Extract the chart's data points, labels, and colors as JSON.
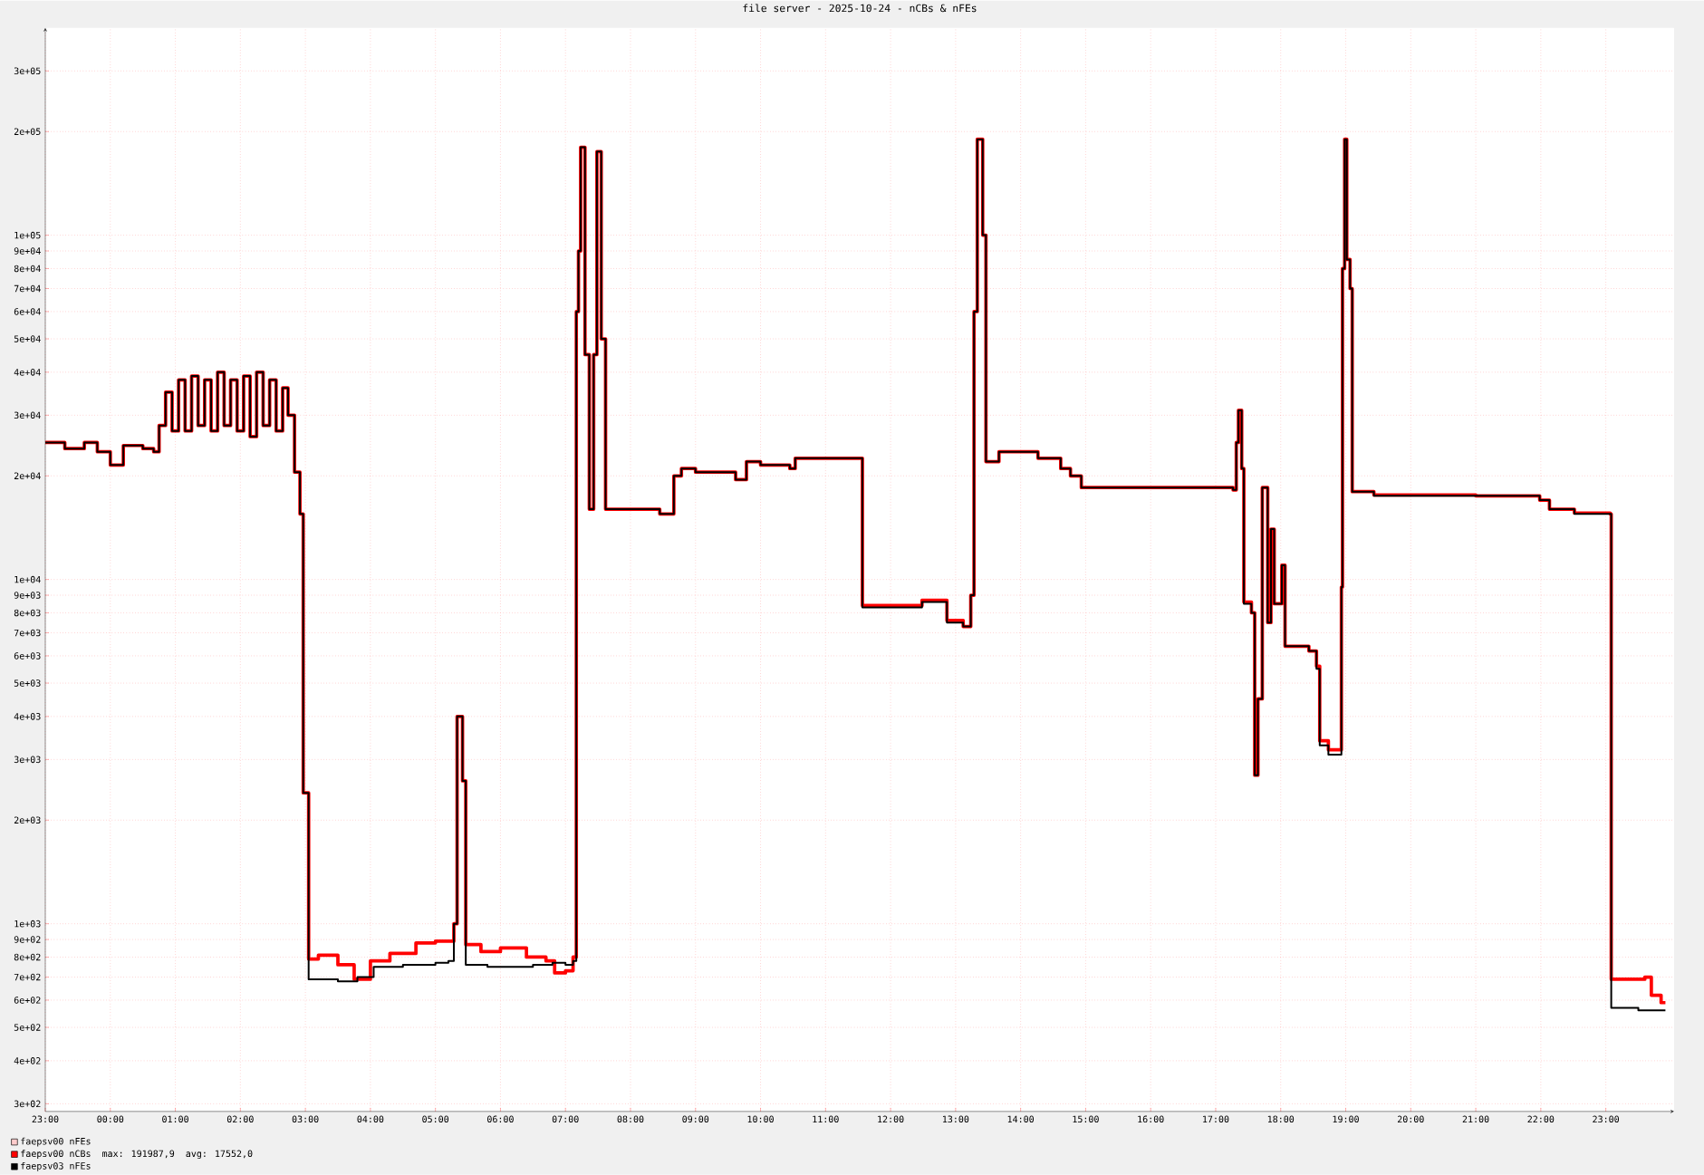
{
  "chart_data": {
    "type": "step",
    "title": "file server - 2025-10-24 - nCBs & nFEs",
    "xlim": [
      "2025-10-23T23:00",
      "2025-10-25T00:03"
    ],
    "ylim": [
      285,
      400000
    ],
    "log": "y",
    "grid": true,
    "legend": "bottom left",
    "xticks": [
      {
        "value": "2025-10-23T23:00",
        "label": "23:00"
      },
      {
        "value": "2025-10-24T00:00",
        "label": "00:00"
      },
      {
        "value": "2025-10-24T01:00",
        "label": "01:00"
      },
      {
        "value": "2025-10-24T02:00",
        "label": "02:00"
      },
      {
        "value": "2025-10-24T03:00",
        "label": "03:00"
      },
      {
        "value": "2025-10-24T04:00",
        "label": "04:00"
      },
      {
        "value": "2025-10-24T05:00",
        "label": "05:00"
      },
      {
        "value": "2025-10-24T06:00",
        "label": "06:00"
      },
      {
        "value": "2025-10-24T07:00",
        "label": "07:00"
      },
      {
        "value": "2025-10-24T08:00",
        "label": "08:00"
      },
      {
        "value": "2025-10-24T09:00",
        "label": "09:00"
      },
      {
        "value": "2025-10-24T10:00",
        "label": "10:00"
      },
      {
        "value": "2025-10-24T11:00",
        "label": "11:00"
      },
      {
        "value": "2025-10-24T12:00",
        "label": "12:00"
      },
      {
        "value": "2025-10-24T13:00",
        "label": "13:00"
      },
      {
        "value": "2025-10-24T14:00",
        "label": "14:00"
      },
      {
        "value": "2025-10-24T15:00",
        "label": "15:00"
      },
      {
        "value": "2025-10-24T16:00",
        "label": "16:00"
      },
      {
        "value": "2025-10-24T17:00",
        "label": "17:00"
      },
      {
        "value": "2025-10-24T18:00",
        "label": "18:00"
      },
      {
        "value": "2025-10-24T19:00",
        "label": "19:00"
      },
      {
        "value": "2025-10-24T20:00",
        "label": "20:00"
      },
      {
        "value": "2025-10-24T21:00",
        "label": "21:00"
      },
      {
        "value": "2025-10-24T22:00",
        "label": "22:00"
      },
      {
        "value": "2025-10-24T23:00",
        "label": "23:00"
      }
    ],
    "yticks": [
      {
        "value": 300,
        "label": "3e+02"
      },
      {
        "value": 400,
        "label": "4e+02"
      },
      {
        "value": 500,
        "label": "5e+02"
      },
      {
        "value": 600,
        "label": "6e+02"
      },
      {
        "value": 700,
        "label": "7e+02"
      },
      {
        "value": 800,
        "label": "8e+02"
      },
      {
        "value": 900,
        "label": "9e+02"
      },
      {
        "value": 1000,
        "label": "1e+03"
      },
      {
        "value": 2000,
        "label": "2e+03"
      },
      {
        "value": 3000,
        "label": "3e+03"
      },
      {
        "value": 4000,
        "label": "4e+03"
      },
      {
        "value": 5000,
        "label": "5e+03"
      },
      {
        "value": 6000,
        "label": "6e+03"
      },
      {
        "value": 7000,
        "label": "7e+03"
      },
      {
        "value": 8000,
        "label": "8e+03"
      },
      {
        "value": 9000,
        "label": "9e+03"
      },
      {
        "value": 10000,
        "label": "1e+04"
      },
      {
        "value": 20000,
        "label": "2e+04"
      },
      {
        "value": 30000,
        "label": "3e+04"
      },
      {
        "value": 40000,
        "label": "4e+04"
      },
      {
        "value": 50000,
        "label": "5e+04"
      },
      {
        "value": 60000,
        "label": "6e+04"
      },
      {
        "value": 70000,
        "label": "7e+04"
      },
      {
        "value": 80000,
        "label": "8e+04"
      },
      {
        "value": 90000,
        "label": "9e+04"
      },
      {
        "value": 100000,
        "label": "1e+05"
      },
      {
        "value": 200000,
        "label": "2e+05"
      },
      {
        "value": 300000,
        "label": "3e+05"
      }
    ],
    "annotations": [
      "max:  191987,9",
      "avg:  17552,0"
    ],
    "series": [
      {
        "name": "faepsv00 nFEs",
        "color": "#ffcccc"
      },
      {
        "name": "faepsv00 nCBs",
        "color": "#ff0000",
        "x": [
          "2025-10-23T23:00",
          "2025-10-23T23:18",
          "2025-10-23T23:36",
          "2025-10-23T23:48",
          "2025-10-24T00:00",
          "2025-10-24T00:12",
          "2025-10-24T00:30",
          "2025-10-24T00:40",
          "2025-10-24T00:45",
          "2025-10-24T00:51",
          "2025-10-24T00:57",
          "2025-10-24T01:03",
          "2025-10-24T01:09",
          "2025-10-24T01:15",
          "2025-10-24T01:21",
          "2025-10-24T01:27",
          "2025-10-24T01:33",
          "2025-10-24T01:39",
          "2025-10-24T01:45",
          "2025-10-24T01:51",
          "2025-10-24T01:57",
          "2025-10-24T02:03",
          "2025-10-24T02:09",
          "2025-10-24T02:15",
          "2025-10-24T02:21",
          "2025-10-24T02:27",
          "2025-10-24T02:33",
          "2025-10-24T02:39",
          "2025-10-24T02:44",
          "2025-10-24T02:50",
          "2025-10-24T02:55",
          "2025-10-24T02:58",
          "2025-10-24T03:03",
          "2025-10-24T03:12",
          "2025-10-24T03:30",
          "2025-10-24T03:45",
          "2025-10-24T04:00",
          "2025-10-24T04:18",
          "2025-10-24T04:42",
          "2025-10-24T05:00",
          "2025-10-24T05:17",
          "2025-10-24T05:20",
          "2025-10-24T05:25",
          "2025-10-24T05:28",
          "2025-10-24T05:42",
          "2025-10-24T06:00",
          "2025-10-24T06:24",
          "2025-10-24T06:42",
          "2025-10-24T06:50",
          "2025-10-24T07:00",
          "2025-10-24T07:07",
          "2025-10-24T07:10",
          "2025-10-24T07:12",
          "2025-10-24T07:14",
          "2025-10-24T07:18",
          "2025-10-24T07:22",
          "2025-10-24T07:26",
          "2025-10-24T07:29",
          "2025-10-24T07:33",
          "2025-10-24T07:37",
          "2025-10-24T08:27",
          "2025-10-24T08:40",
          "2025-10-24T08:47",
          "2025-10-24T09:00",
          "2025-10-24T09:37",
          "2025-10-24T09:47",
          "2025-10-24T10:00",
          "2025-10-24T10:27",
          "2025-10-24T10:32",
          "2025-10-24T11:00",
          "2025-10-24T11:34",
          "2025-10-24T12:00",
          "2025-10-24T12:29",
          "2025-10-24T12:52",
          "2025-10-24T13:07",
          "2025-10-24T13:14",
          "2025-10-24T13:17",
          "2025-10-24T13:20",
          "2025-10-24T13:25",
          "2025-10-24T13:28",
          "2025-10-24T13:40",
          "2025-10-24T14:00",
          "2025-10-24T14:16",
          "2025-10-24T14:37",
          "2025-10-24T14:46",
          "2025-10-24T14:56",
          "2025-10-24T16:00",
          "2025-10-24T16:56",
          "2025-10-24T17:16",
          "2025-10-24T17:19",
          "2025-10-24T17:21",
          "2025-10-24T17:24",
          "2025-10-24T17:26",
          "2025-10-24T17:33",
          "2025-10-24T17:36",
          "2025-10-24T17:39",
          "2025-10-24T17:43",
          "2025-10-24T17:48",
          "2025-10-24T17:51",
          "2025-10-24T17:54",
          "2025-10-24T18:01",
          "2025-10-24T18:04",
          "2025-10-24T18:26",
          "2025-10-24T18:33",
          "2025-10-24T18:36",
          "2025-10-24T18:44",
          "2025-10-24T18:56",
          "2025-10-24T18:57",
          "2025-10-24T18:59",
          "2025-10-24T19:01",
          "2025-10-24T19:04",
          "2025-10-24T19:06",
          "2025-10-24T19:26",
          "2025-10-24T21:00",
          "2025-10-24T21:59",
          "2025-10-24T22:08",
          "2025-10-24T22:31",
          "2025-10-24T23:04",
          "2025-10-24T23:05",
          "2025-10-24T23:36",
          "2025-10-24T23:42",
          "2025-10-24T23:51",
          "2025-10-24T23:55"
        ],
        "values": [
          25000,
          24000,
          25000,
          23500,
          21500,
          24500,
          24000,
          23500,
          28000,
          35000,
          27000,
          38000,
          27000,
          39000,
          28000,
          38000,
          27000,
          40000,
          28000,
          38000,
          27000,
          39000,
          26000,
          40000,
          28000,
          38000,
          27000,
          36000,
          30000,
          20500,
          15500,
          2400,
          790,
          810,
          760,
          690,
          780,
          820,
          880,
          890,
          1000,
          4000,
          2600,
          870,
          830,
          850,
          800,
          780,
          720,
          730,
          800,
          60000,
          90000,
          180000,
          45000,
          16000,
          45000,
          175000,
          50000,
          16000,
          15500,
          20000,
          21000,
          20500,
          19500,
          22000,
          21500,
          21000,
          22500,
          22500,
          8400,
          8400,
          8700,
          7600,
          7300,
          9000,
          60000,
          190000,
          100000,
          22000,
          23500,
          23500,
          22500,
          21000,
          20000,
          18500,
          18500,
          18500,
          18200,
          25000,
          31000,
          21000,
          8600,
          8000,
          2700,
          4500,
          18500,
          7500,
          14000,
          8500,
          11000,
          6400,
          6200,
          5600,
          3400,
          3200,
          9500,
          80000,
          190000,
          85000,
          70000,
          18000,
          17600,
          17500,
          17000,
          16000,
          15600,
          15500,
          690,
          700,
          620,
          590,
          590
        ]
      },
      {
        "name": "faepsv03 nFEs",
        "color": "#000000",
        "x": [
          "2025-10-23T23:00",
          "2025-10-23T23:18",
          "2025-10-23T23:36",
          "2025-10-23T23:48",
          "2025-10-24T00:00",
          "2025-10-24T00:12",
          "2025-10-24T00:30",
          "2025-10-24T00:40",
          "2025-10-24T00:45",
          "2025-10-24T00:51",
          "2025-10-24T00:57",
          "2025-10-24T01:03",
          "2025-10-24T01:09",
          "2025-10-24T01:15",
          "2025-10-24T01:21",
          "2025-10-24T01:27",
          "2025-10-24T01:33",
          "2025-10-24T01:39",
          "2025-10-24T01:45",
          "2025-10-24T01:51",
          "2025-10-24T01:57",
          "2025-10-24T02:03",
          "2025-10-24T02:09",
          "2025-10-24T02:15",
          "2025-10-24T02:21",
          "2025-10-24T02:27",
          "2025-10-24T02:33",
          "2025-10-24T02:39",
          "2025-10-24T02:44",
          "2025-10-24T02:50",
          "2025-10-24T02:55",
          "2025-10-24T02:58",
          "2025-10-24T03:03",
          "2025-10-24T03:30",
          "2025-10-24T03:48",
          "2025-10-24T04:03",
          "2025-10-24T04:30",
          "2025-10-24T05:00",
          "2025-10-24T05:12",
          "2025-10-24T05:17",
          "2025-10-24T05:20",
          "2025-10-24T05:25",
          "2025-10-24T05:28",
          "2025-10-24T05:48",
          "2025-10-24T06:30",
          "2025-10-24T06:48",
          "2025-10-24T07:00",
          "2025-10-24T07:07",
          "2025-10-24T07:10",
          "2025-10-24T07:12",
          "2025-10-24T07:14",
          "2025-10-24T07:18",
          "2025-10-24T07:22",
          "2025-10-24T07:26",
          "2025-10-24T07:29",
          "2025-10-24T07:33",
          "2025-10-24T07:37",
          "2025-10-24T08:27",
          "2025-10-24T08:40",
          "2025-10-24T08:47",
          "2025-10-24T09:00",
          "2025-10-24T09:37",
          "2025-10-24T09:47",
          "2025-10-24T10:00",
          "2025-10-24T10:27",
          "2025-10-24T10:32",
          "2025-10-24T11:00",
          "2025-10-24T11:34",
          "2025-10-24T12:00",
          "2025-10-24T12:29",
          "2025-10-24T12:52",
          "2025-10-24T13:07",
          "2025-10-24T13:14",
          "2025-10-24T13:17",
          "2025-10-24T13:20",
          "2025-10-24T13:25",
          "2025-10-24T13:28",
          "2025-10-24T13:40",
          "2025-10-24T14:00",
          "2025-10-24T14:16",
          "2025-10-24T14:37",
          "2025-10-24T14:46",
          "2025-10-24T14:56",
          "2025-10-24T16:00",
          "2025-10-24T16:56",
          "2025-10-24T17:16",
          "2025-10-24T17:19",
          "2025-10-24T17:21",
          "2025-10-24T17:24",
          "2025-10-24T17:26",
          "2025-10-24T17:33",
          "2025-10-24T17:36",
          "2025-10-24T17:39",
          "2025-10-24T17:43",
          "2025-10-24T17:48",
          "2025-10-24T17:51",
          "2025-10-24T17:54",
          "2025-10-24T18:01",
          "2025-10-24T18:04",
          "2025-10-24T18:26",
          "2025-10-24T18:33",
          "2025-10-24T18:36",
          "2025-10-24T18:44",
          "2025-10-24T18:56",
          "2025-10-24T18:57",
          "2025-10-24T18:59",
          "2025-10-24T19:01",
          "2025-10-24T19:04",
          "2025-10-24T19:06",
          "2025-10-24T19:26",
          "2025-10-24T21:00",
          "2025-10-24T21:59",
          "2025-10-24T22:08",
          "2025-10-24T22:31",
          "2025-10-24T23:04",
          "2025-10-24T23:05",
          "2025-10-24T23:30",
          "2025-10-24T23:55"
        ],
        "values": [
          25000,
          24000,
          25000,
          23500,
          21500,
          24500,
          24000,
          23500,
          28000,
          35000,
          27000,
          38000,
          27000,
          39000,
          28000,
          38000,
          27000,
          40000,
          28000,
          38000,
          27000,
          39000,
          26000,
          40000,
          28000,
          38000,
          27000,
          36000,
          30000,
          20500,
          15500,
          2400,
          690,
          680,
          700,
          750,
          760,
          770,
          780,
          1000,
          4000,
          2600,
          760,
          750,
          760,
          770,
          760,
          780,
          60000,
          90000,
          180000,
          45000,
          16000,
          45000,
          175000,
          50000,
          16000,
          15500,
          20000,
          21000,
          20500,
          19500,
          22000,
          21500,
          21000,
          22500,
          22500,
          8300,
          8300,
          8600,
          7500,
          7300,
          9000,
          60000,
          190000,
          100000,
          22000,
          23500,
          23500,
          22500,
          21000,
          20000,
          18500,
          18500,
          18500,
          18200,
          25000,
          31000,
          21000,
          8500,
          8000,
          2700,
          4500,
          18500,
          7500,
          14000,
          8500,
          11000,
          6400,
          6200,
          5500,
          3300,
          3100,
          9500,
          80000,
          190000,
          85000,
          70000,
          18000,
          17500,
          17500,
          17000,
          16000,
          15500,
          15500,
          570,
          560,
          560
        ]
      }
    ]
  }
}
